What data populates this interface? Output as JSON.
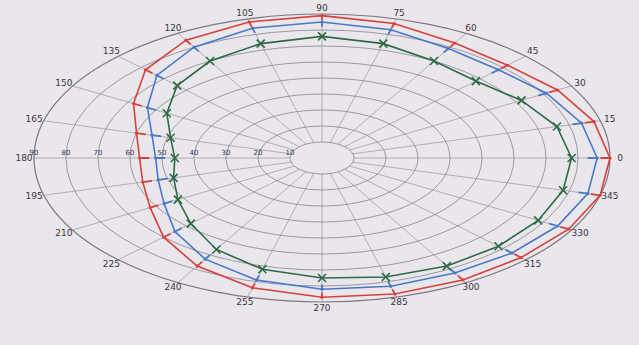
{
  "chart_data": {
    "type": "polar",
    "x": [
      0,
      15,
      30,
      45,
      60,
      75,
      90,
      105,
      120,
      135,
      150,
      165,
      180,
      195,
      210,
      225,
      240,
      255,
      270,
      285,
      300,
      315,
      330,
      345
    ],
    "xlim": [
      0,
      360
    ],
    "xticks": [
      0,
      15,
      30,
      45,
      60,
      75,
      90,
      105,
      120,
      135,
      150,
      165,
      180,
      195,
      210,
      225,
      240,
      255,
      270,
      285,
      300,
      315,
      330,
      345
    ],
    "ylim": [
      0,
      90
    ],
    "yticks": [
      10,
      20,
      30,
      40,
      50,
      60,
      70,
      80,
      90
    ],
    "grid": true,
    "series": [
      {
        "color": "#d8403a",
        "marker": "tick",
        "line_style": "solid",
        "values": [
          90,
          88,
          85,
          82,
          83,
          87,
          89,
          88,
          85,
          78,
          68,
          60,
          57,
          58,
          62,
          70,
          78,
          84,
          87,
          88,
          88,
          88,
          89,
          90
        ]
      },
      {
        "color": "#4a78c8",
        "marker": "tick",
        "line_style": "solid",
        "values": [
          86,
          84,
          81,
          78,
          79,
          83,
          85,
          84,
          80,
          73,
          63,
          55,
          52,
          53,
          57,
          65,
          73,
          79,
          82,
          83,
          83,
          84,
          85,
          86
        ]
      },
      {
        "color": "#2e6a45",
        "marker": "x",
        "line_style": "solid",
        "values": [
          78,
          76,
          72,
          68,
          70,
          74,
          76,
          74,
          70,
          64,
          56,
          49,
          46,
          48,
          52,
          58,
          66,
          72,
          75,
          77,
          78,
          78,
          78,
          78
        ]
      }
    ]
  }
}
